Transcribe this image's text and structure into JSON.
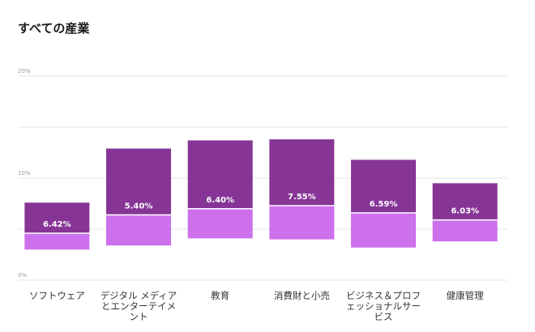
{
  "chart_data": {
    "type": "bar",
    "title": "すべての産業",
    "ylim": [
      0,
      20
    ],
    "yticks": [
      "0%",
      "10%",
      "20%"
    ],
    "grid": true,
    "colors": {
      "upper": "#863596",
      "lower": "#cc70ec",
      "divider": "#ffffff"
    },
    "categories": [
      [
        "ソフトウェア"
      ],
      [
        "デジタル メディア",
        "とエンターテイメ",
        "ント"
      ],
      [
        "教育"
      ],
      [
        "消費財と小売"
      ],
      [
        "ビジネス＆プロフ",
        "ェッショナルサー",
        "ビス"
      ],
      [
        "健康管理"
      ]
    ],
    "bars": [
      {
        "low": 3.0,
        "mid": 4.6,
        "high": 7.6,
        "label": "6.42%"
      },
      {
        "low": 3.4,
        "mid": 6.4,
        "high": 12.9,
        "label": "5.40%"
      },
      {
        "low": 4.1,
        "mid": 7.0,
        "high": 13.7,
        "label": "6.40%"
      },
      {
        "low": 4.0,
        "mid": 7.3,
        "high": 13.8,
        "label": "7.55%"
      },
      {
        "low": 3.2,
        "mid": 6.6,
        "high": 11.8,
        "label": "6.59%"
      },
      {
        "low": 3.8,
        "mid": 5.9,
        "high": 9.5,
        "label": "6.03%"
      }
    ]
  }
}
